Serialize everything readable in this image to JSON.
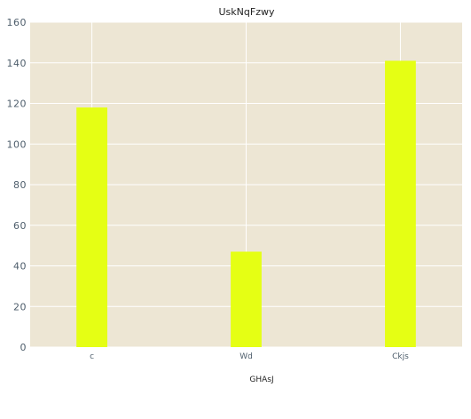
{
  "chart_data": {
    "type": "bar",
    "title": "UskNqFzwy",
    "xlabel": "GHAsJ",
    "ylabel": "",
    "categories": [
      "c",
      "Wd",
      "Ckjs"
    ],
    "values": [
      118,
      47,
      141
    ],
    "ylim": [
      0,
      160
    ],
    "yticks": [
      "0",
      "20",
      "40",
      "60",
      "80",
      "100",
      "120",
      "140",
      "160"
    ],
    "grid": true,
    "bar_color": "#e5ff14",
    "plot_background": "#ede6d4",
    "grid_color": "#ffffff"
  }
}
